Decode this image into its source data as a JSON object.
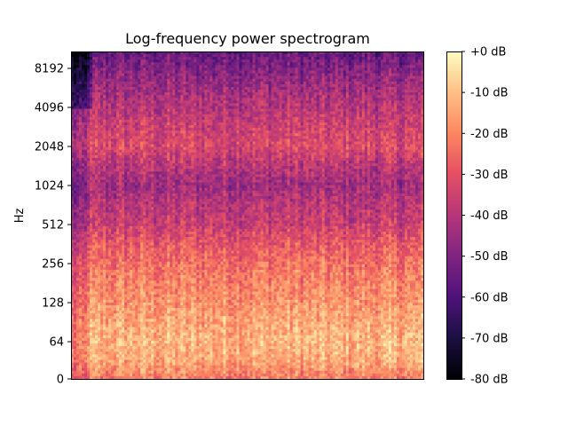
{
  "chart_data": {
    "type": "heatmap",
    "title": "Log-frequency power spectrogram",
    "ylabel": "Hz",
    "xlabel": "",
    "y_scale": "log",
    "y_ticks": [
      {
        "value": 0,
        "label": "0"
      },
      {
        "value": 64,
        "label": "64"
      },
      {
        "value": 128,
        "label": "128"
      },
      {
        "value": 256,
        "label": "256"
      },
      {
        "value": 512,
        "label": "512"
      },
      {
        "value": 1024,
        "label": "1024"
      },
      {
        "value": 2048,
        "label": "2048"
      },
      {
        "value": 4096,
        "label": "4096"
      },
      {
        "value": 8192,
        "label": "8192"
      }
    ],
    "colorbar": {
      "colormap": "magma",
      "range": [
        -80,
        0
      ],
      "ticks": [
        {
          "value": 0,
          "label": "+0 dB"
        },
        {
          "value": -10,
          "label": "-10 dB"
        },
        {
          "value": -20,
          "label": "-20 dB"
        },
        {
          "value": -30,
          "label": "-30 dB"
        },
        {
          "value": -40,
          "label": "-40 dB"
        },
        {
          "value": -50,
          "label": "-50 dB"
        },
        {
          "value": -60,
          "label": "-60 dB"
        },
        {
          "value": -70,
          "label": "-70 dB"
        },
        {
          "value": -80,
          "label": "-80 dB"
        }
      ]
    },
    "frequency_profile_db": [
      {
        "hz": 0,
        "db": -22
      },
      {
        "hz": 32,
        "db": -14
      },
      {
        "hz": 64,
        "db": -12
      },
      {
        "hz": 128,
        "db": -18
      },
      {
        "hz": 256,
        "db": -24
      },
      {
        "hz": 512,
        "db": -36
      },
      {
        "hz": 1024,
        "db": -44
      },
      {
        "hz": 2048,
        "db": -32
      },
      {
        "hz": 4096,
        "db": -40
      },
      {
        "hz": 8192,
        "db": -50
      },
      {
        "hz": 11025,
        "db": -56
      }
    ],
    "frame_count": 132,
    "bin_count": 120
  }
}
